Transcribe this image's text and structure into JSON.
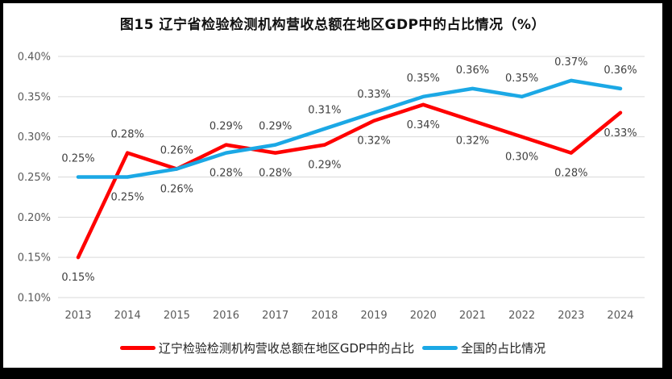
{
  "title": "图15 辽宁省检验检测机构营收总额在地区GDP中的占比情况（%）",
  "colors": {
    "liaoning_line": "#FF0000",
    "national_line": "#1BA8E5",
    "gridline": "#D9D9D9",
    "axis_text": "#595959",
    "data_label_text": "#404040",
    "frame": "#000000",
    "background": "#FFFFFF"
  },
  "chart_data": {
    "type": "line",
    "title": "图15 辽宁省检验检测机构营收总额在地区GDP中的占比情况（%）",
    "categories": [
      "2013",
      "2014",
      "2015",
      "2016",
      "2017",
      "2018",
      "2019",
      "2020",
      "2021",
      "2022",
      "2023",
      "2024"
    ],
    "series": [
      {
        "name": "辽宁检验检测机构营收总额在地区GDP中的占比",
        "color": "#FF0000",
        "values": [
          0.15,
          0.28,
          0.26,
          0.29,
          0.28,
          0.29,
          0.32,
          0.34,
          0.32,
          0.3,
          0.28,
          0.33
        ],
        "labels": [
          "0.15%",
          "0.28%",
          "0.26%",
          "0.29%",
          "0.28%",
          "0.29%",
          "0.32%",
          "0.34%",
          "0.32%",
          "0.30%",
          "0.28%",
          "0.33%"
        ],
        "label_sides": [
          "below",
          "above",
          "above",
          "above",
          "below",
          "below",
          "below",
          "below",
          "below",
          "below",
          "below",
          "below"
        ]
      },
      {
        "name": "全国的占比情况",
        "color": "#1BA8E5",
        "values": [
          0.25,
          0.25,
          0.26,
          0.28,
          0.29,
          0.31,
          0.33,
          0.35,
          0.36,
          0.35,
          0.37,
          0.36
        ],
        "labels": [
          "0.25%",
          "0.25%",
          "0.26%",
          "0.28%",
          "0.29%",
          "0.31%",
          "0.33%",
          "0.35%",
          "0.36%",
          "0.35%",
          "0.37%",
          "0.36%"
        ],
        "label_sides": [
          "above",
          "below",
          "below",
          "below",
          "above",
          "above",
          "above",
          "above",
          "above",
          "above",
          "above",
          "above"
        ]
      }
    ],
    "xlabel": "",
    "ylabel": "",
    "y_axis": {
      "min": 0.1,
      "max": 0.4,
      "step": 0.05,
      "tick_labels": [
        "0.40%",
        "0.35%",
        "0.30%",
        "0.25%",
        "0.20%",
        "0.15%",
        "0.10%"
      ]
    },
    "grid": true,
    "legend_position": "bottom"
  }
}
